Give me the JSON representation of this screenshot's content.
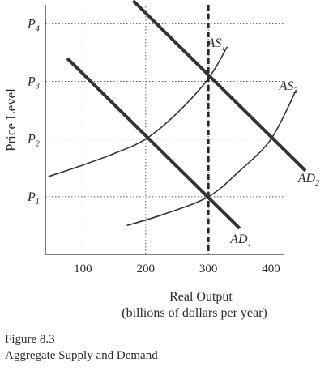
{
  "chart_data": {
    "type": "line",
    "ylabel": "Price Level",
    "xlabel": "Real Output",
    "xlabel_sub": "(billions of dollars per year)",
    "x_ticks": [
      100,
      200,
      300,
      400
    ],
    "xlim": [
      40,
      420
    ],
    "y_ticks": [
      {
        "base": "P",
        "sub": "1",
        "value": 1
      },
      {
        "base": "P",
        "sub": "2",
        "value": 2
      },
      {
        "base": "P",
        "sub": "3",
        "value": 3
      },
      {
        "base": "P",
        "sub": "4",
        "value": 4
      }
    ],
    "ylim": [
      0,
      4.3
    ],
    "grid": true,
    "vertical_line": {
      "x": 300,
      "style": "dashed"
    },
    "series": [
      {
        "name": "AS",
        "sub": "1",
        "kind": "curve",
        "x": [
          45,
          100,
          150,
          200,
          250,
          300,
          330
        ],
        "y": [
          1.35,
          1.55,
          1.75,
          2.0,
          2.45,
          3.05,
          3.6
        ],
        "label_at": [
          298,
          3.6
        ]
      },
      {
        "name": "AS",
        "sub": "2",
        "kind": "curve",
        "x": [
          170,
          230,
          300,
          350,
          400,
          440
        ],
        "y": [
          0.5,
          0.7,
          1.0,
          1.45,
          2.0,
          2.85
        ],
        "label_at": [
          413,
          2.85
        ]
      },
      {
        "name": "AD",
        "sub": "1",
        "kind": "line",
        "x": [
          75,
          350
        ],
        "y": [
          3.4,
          0.45
        ],
        "label_at": [
          335,
          0.2
        ]
      },
      {
        "name": "AD",
        "sub": "2",
        "kind": "line",
        "x": [
          180,
          455
        ],
        "y": [
          4.4,
          1.45
        ],
        "label_at": [
          443,
          1.25
        ]
      }
    ]
  },
  "caption": {
    "figure": "Figure 8.3",
    "title": "Aggregate Supply and Demand"
  }
}
